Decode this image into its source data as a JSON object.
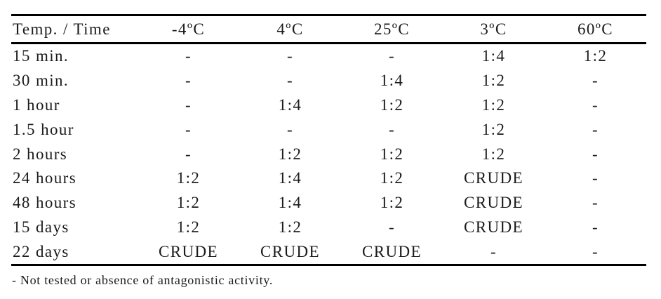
{
  "table": {
    "columns": [
      "Temp. / Time",
      "-4ºC",
      "4ºC",
      "25ºC",
      "3ºC",
      "60ºC"
    ],
    "rows": [
      {
        "label": "15 min.",
        "values": [
          "-",
          "-",
          "-",
          "1:4",
          "1:2"
        ]
      },
      {
        "label": "30 min.",
        "values": [
          "-",
          "-",
          "1:4",
          "1:2",
          "-"
        ]
      },
      {
        "label": "1 hour",
        "values": [
          "-",
          "1:4",
          "1:2",
          "1:2",
          "-"
        ]
      },
      {
        "label": "1.5 hour",
        "values": [
          "-",
          "-",
          "-",
          "1:2",
          "-"
        ]
      },
      {
        "label": "2 hours",
        "values": [
          "-",
          "1:2",
          "1:2",
          "1:2",
          "-"
        ]
      },
      {
        "label": "24 hours",
        "values": [
          "1:2",
          "1:4",
          "1:2",
          "CRUDE",
          "-"
        ]
      },
      {
        "label": "48 hours",
        "values": [
          "1:2",
          "1:4",
          "1:2",
          "CRUDE",
          "-"
        ]
      },
      {
        "label": "15 days",
        "values": [
          "1:2",
          "1:2",
          "-",
          "CRUDE",
          "-"
        ]
      },
      {
        "label": "22 days",
        "values": [
          "CRUDE",
          "CRUDE",
          "CRUDE",
          "-",
          "-"
        ]
      }
    ],
    "footnote": "- Not tested or absence of antagonistic activity."
  },
  "chart_data": {
    "type": "table",
    "columns": [
      "Temp. / Time",
      "-4ºC",
      "4ºC",
      "25ºC",
      "3ºC",
      "60ºC"
    ],
    "rows": [
      [
        "15 min.",
        "-",
        "-",
        "-",
        "1:4",
        "1:2"
      ],
      [
        "30 min.",
        "-",
        "-",
        "1:4",
        "1:2",
        "-"
      ],
      [
        "1 hour",
        "-",
        "1:4",
        "1:2",
        "1:2",
        "-"
      ],
      [
        "1.5 hour",
        "-",
        "-",
        "-",
        "1:2",
        "-"
      ],
      [
        "2 hours",
        "-",
        "1:2",
        "1:2",
        "1:2",
        "-"
      ],
      [
        "24 hours",
        "1:2",
        "1:4",
        "1:2",
        "CRUDE",
        "-"
      ],
      [
        "48 hours",
        "1:2",
        "1:4",
        "1:2",
        "CRUDE",
        "-"
      ],
      [
        "15 days",
        "1:2",
        "1:2",
        "-",
        "CRUDE",
        "-"
      ],
      [
        "22 days",
        "CRUDE",
        "CRUDE",
        "CRUDE",
        "-",
        "-"
      ]
    ],
    "footnote": "- Not tested or absence of antagonistic activity."
  },
  "colors": {
    "text": "#1b1b1b",
    "rule": "#000000",
    "background": "#ffffff"
  }
}
